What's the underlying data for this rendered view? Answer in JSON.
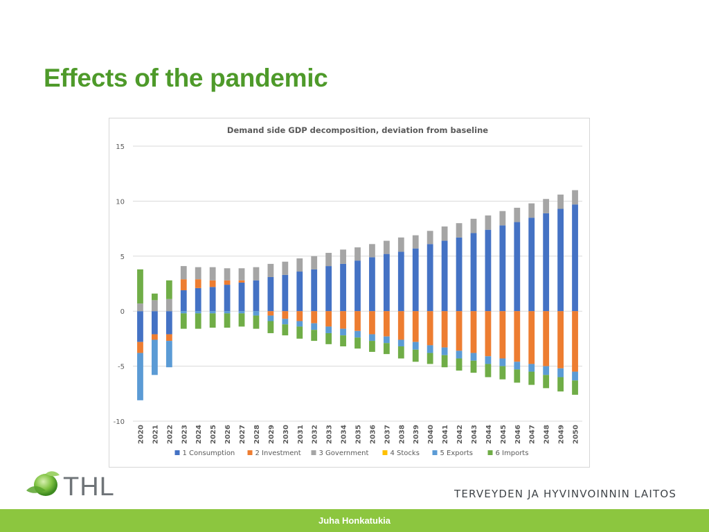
{
  "slide": {
    "title": "Effects of the pandemic",
    "organization": "TERVEYDEN JA HYVINVOINNIN LAITOS",
    "logo_text": "THL",
    "footer_author": "Juha Honkatukia",
    "colors": {
      "title_green": "#4e9a2a",
      "footer_green": "#8cc63f"
    }
  },
  "chart_data": {
    "type": "bar",
    "stacked": true,
    "title": "Demand side GDP decomposition, deviation from baseline",
    "xlabel": "",
    "ylabel": "",
    "ylim": [
      -10,
      15
    ],
    "yticks": [
      15,
      10,
      5,
      0,
      -5,
      -10
    ],
    "grid": true,
    "legend_position": "bottom",
    "categories": [
      "2020",
      "2021",
      "2022",
      "2023",
      "2024",
      "2025",
      "2026",
      "2027",
      "2028",
      "2029",
      "2030",
      "2031",
      "2032",
      "2033",
      "2034",
      "2035",
      "2036",
      "2037",
      "2038",
      "2039",
      "2040",
      "2041",
      "2042",
      "2043",
      "2044",
      "2045",
      "2046",
      "2047",
      "2048",
      "2049",
      "2050"
    ],
    "series": [
      {
        "name": "1 Consumption",
        "color": "#4472c4",
        "values": [
          -2.8,
          -2.1,
          -2.1,
          1.9,
          2.1,
          2.2,
          2.4,
          2.6,
          2.8,
          3.1,
          3.3,
          3.6,
          3.8,
          4.1,
          4.3,
          4.6,
          4.9,
          5.2,
          5.4,
          5.7,
          6.1,
          6.4,
          6.7,
          7.1,
          7.4,
          7.8,
          8.1,
          8.5,
          8.9,
          9.3,
          9.7
        ]
      },
      {
        "name": "2 Investment",
        "color": "#ed7d31",
        "values": [
          -1.0,
          -0.5,
          -0.6,
          1.0,
          0.8,
          0.6,
          0.4,
          0.2,
          0.0,
          -0.4,
          -0.7,
          -0.9,
          -1.1,
          -1.4,
          -1.6,
          -1.8,
          -2.1,
          -2.3,
          -2.6,
          -2.8,
          -3.1,
          -3.3,
          -3.6,
          -3.8,
          -4.1,
          -4.3,
          -4.6,
          -4.8,
          -5.0,
          -5.2,
          -5.5
        ]
      },
      {
        "name": "3 Government",
        "color": "#a5a5a5",
        "values": [
          0.7,
          1.0,
          1.1,
          1.2,
          1.1,
          1.2,
          1.1,
          1.1,
          1.2,
          1.2,
          1.2,
          1.2,
          1.2,
          1.2,
          1.3,
          1.2,
          1.2,
          1.2,
          1.3,
          1.2,
          1.2,
          1.3,
          1.3,
          1.3,
          1.3,
          1.3,
          1.3,
          1.3,
          1.3,
          1.3,
          1.3
        ]
      },
      {
        "name": "4 Stocks",
        "color": "#ffc000",
        "values": [
          0,
          0,
          0,
          0,
          0,
          0,
          0,
          0,
          0,
          0,
          0,
          0,
          0,
          0,
          0,
          0,
          0,
          0,
          0,
          0,
          0,
          0,
          0,
          0,
          0,
          0,
          0,
          0,
          0,
          0,
          0
        ]
      },
      {
        "name": "5 Exports",
        "color": "#5b9bd5",
        "values": [
          -4.3,
          -3.2,
          -2.4,
          -0.2,
          -0.2,
          -0.2,
          -0.2,
          -0.2,
          -0.4,
          -0.5,
          -0.5,
          -0.5,
          -0.6,
          -0.6,
          -0.6,
          -0.6,
          -0.6,
          -0.6,
          -0.6,
          -0.7,
          -0.7,
          -0.7,
          -0.7,
          -0.7,
          -0.7,
          -0.7,
          -0.7,
          -0.7,
          -0.8,
          -0.8,
          -0.8
        ]
      },
      {
        "name": "6 Imports",
        "color": "#70ad47",
        "values": [
          3.1,
          0.6,
          1.7,
          -1.4,
          -1.4,
          -1.3,
          -1.3,
          -1.2,
          -1.2,
          -1.1,
          -1.0,
          -1.1,
          -1.0,
          -1.0,
          -1.0,
          -1.0,
          -1.0,
          -1.0,
          -1.1,
          -1.1,
          -1.0,
          -1.1,
          -1.1,
          -1.1,
          -1.2,
          -1.2,
          -1.2,
          -1.2,
          -1.2,
          -1.3,
          -1.3
        ]
      }
    ]
  }
}
